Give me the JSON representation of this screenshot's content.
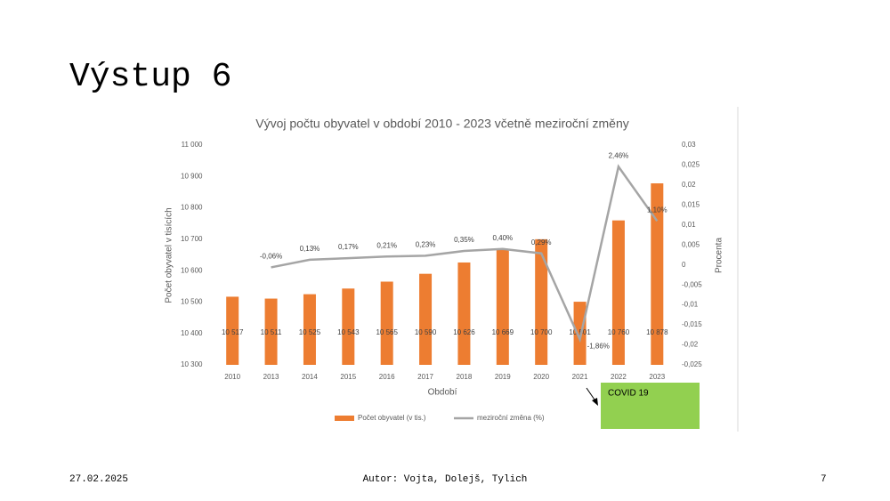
{
  "slide": {
    "title": "Výstup 6",
    "date": "27.02.2025",
    "author": "Autor: Vojta, Dolejš, Tylich",
    "page": "7"
  },
  "annotation": "COVID 19",
  "chart_data": {
    "type": "bar-line",
    "title": "Vývoj počtu obyvatel v období 2010 - 2023 včetně meziroční změny",
    "x_label": "Období",
    "y_label": "Počet obyvatel v tisících",
    "y2_label": "Procenta",
    "categories": [
      "2010",
      "2013",
      "2014",
      "2015",
      "2016",
      "2017",
      "2018",
      "2019",
      "2020",
      "2021",
      "2022",
      "2023"
    ],
    "series": [
      {
        "name": "Počet obyvatel (v tis.)",
        "color": "#ed7d31",
        "type": "bar",
        "values": [
          10517,
          10511,
          10525,
          10543,
          10565,
          10590,
          10626,
          10669,
          10700,
          10501,
          10760,
          10878
        ],
        "value_labels": [
          "10 517",
          "10 511",
          "10 525",
          "10 543",
          "10 565",
          "10 590",
          "10 626",
          "10 669",
          "10 700",
          "10 501",
          "10 760",
          "10 878"
        ]
      },
      {
        "name": "meziroční změna (%)",
        "color": "#a5a5a5",
        "type": "line",
        "axis": "y2",
        "values": [
          null,
          -0.0006,
          0.0013,
          0.0017,
          0.0021,
          0.0023,
          0.0035,
          0.004,
          0.0029,
          -0.0186,
          0.0246,
          0.011
        ],
        "value_labels": [
          null,
          "-0,06%",
          "0,13%",
          "0,17%",
          "0,21%",
          "0,23%",
          "0,35%",
          "0,40%",
          "0,29%",
          "-1,86%",
          "2,46%",
          "1,10%"
        ]
      }
    ],
    "ylim": [
      10300,
      11000
    ],
    "yticks": [
      {
        "value": 10300,
        "label": "10 300"
      },
      {
        "value": 10400,
        "label": "10 400"
      },
      {
        "value": 10500,
        "label": "10 500"
      },
      {
        "value": 10600,
        "label": "10 600"
      },
      {
        "value": 10700,
        "label": "10 700"
      },
      {
        "value": 10800,
        "label": "10 800"
      },
      {
        "value": 10900,
        "label": "10 900"
      },
      {
        "value": 11000,
        "label": "11 000"
      }
    ],
    "y2lim": [
      -0.025,
      0.03
    ],
    "y2ticks": [
      {
        "value": -0.025,
        "label": "-0,025"
      },
      {
        "value": -0.02,
        "label": "-0,02"
      },
      {
        "value": -0.015,
        "label": "-0,015"
      },
      {
        "value": -0.01,
        "label": "-0,01"
      },
      {
        "value": -0.005,
        "label": "-0,005"
      },
      0,
      {
        "value": 0.005,
        "label": "0,005"
      },
      {
        "value": 0.01,
        "label": "0,01"
      },
      {
        "value": 0.015,
        "label": "0,015"
      },
      {
        "value": 0.02,
        "label": "0,02"
      },
      {
        "value": 0.025,
        "label": "0,025"
      },
      {
        "value": 0.03,
        "label": "0,03"
      }
    ],
    "legend": "bottom"
  }
}
